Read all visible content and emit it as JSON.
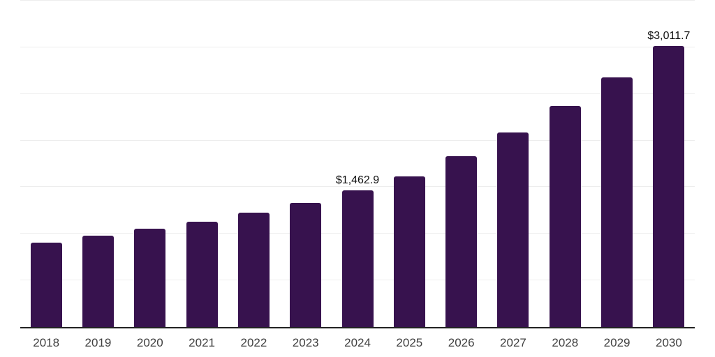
{
  "chart_data": {
    "type": "bar",
    "title": "",
    "xlabel": "",
    "ylabel": "",
    "categories": [
      "2018",
      "2019",
      "2020",
      "2021",
      "2022",
      "2023",
      "2024",
      "2025",
      "2026",
      "2027",
      "2028",
      "2029",
      "2030"
    ],
    "values": [
      907,
      978,
      1055,
      1130,
      1227,
      1331,
      1462.9,
      1618,
      1833,
      2087,
      2373,
      2678,
      3011.7
    ],
    "data_labels": [
      {
        "index": 6,
        "text": "$1,462.9"
      },
      {
        "index": 12,
        "text": "$3,011.7"
      }
    ],
    "ylim": [
      0,
      3500
    ],
    "gridline_step": 500,
    "grid": true,
    "y_tick_labels_visible": false,
    "legend": "none",
    "currency_prefix": "$"
  },
  "colors": {
    "bar": "#37124E",
    "gridline": "#ededed",
    "axis_line": "#222222",
    "x_tick_label": "#404040",
    "data_label": "#111111",
    "background": "#ffffff"
  }
}
